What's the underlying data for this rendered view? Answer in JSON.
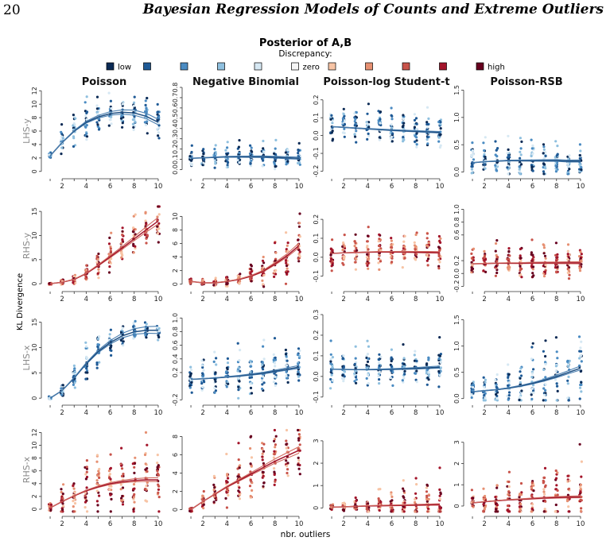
{
  "page": {
    "number": "20",
    "running_title": "Bayesian Regression Models of Counts and Extreme Outliers"
  },
  "figure": {
    "title": "Posterior of A,B",
    "legend_title": "Discrepancy:",
    "legend": [
      {
        "label": "low",
        "color": "#0b2a55"
      },
      {
        "label": "",
        "color": "#1f5a96"
      },
      {
        "label": "",
        "color": "#4a8bc2"
      },
      {
        "label": "",
        "color": "#8fc0df"
      },
      {
        "label": "",
        "color": "#d6e8f3"
      },
      {
        "label": "zero",
        "color": "#f5f5f5"
      },
      {
        "label": "",
        "color": "#f7c4a5"
      },
      {
        "label": "",
        "color": "#e69072"
      },
      {
        "label": "",
        "color": "#c8534a"
      },
      {
        "label": "",
        "color": "#a3142a"
      },
      {
        "label": "high",
        "color": "#67001f"
      }
    ],
    "xlabel": "nbr. outliers",
    "ylabel": "KL Divergence",
    "palette": {
      "blue_points": [
        "#0b2a55",
        "#1f5a96",
        "#4a8bc2",
        "#8fc0df",
        "#d6e8f3"
      ],
      "red_points": [
        "#67001f",
        "#a3142a",
        "#c8534a",
        "#e69072",
        "#f7c4a5"
      ],
      "blue_line": "#1f4f82",
      "red_line": "#a3142a"
    }
  },
  "chart_data": {
    "type": "scatter",
    "columns": [
      "Poisson",
      "Negative Binomial",
      "Poisson-log Student-t",
      "Poisson-RSB"
    ],
    "rows": [
      "LHS-y",
      "RHS-y",
      "LHS-x",
      "RHS-x"
    ],
    "x": [
      1,
      2,
      3,
      4,
      5,
      6,
      7,
      8,
      9,
      10
    ],
    "xlim": [
      0.6,
      10.4
    ],
    "x_ticks": [
      2,
      4,
      6,
      8,
      10
    ],
    "panels": [
      {
        "row": "LHS-y",
        "column": "Poisson",
        "tone": "blue",
        "ylim": [
          -0.5,
          12.5
        ],
        "y_ticks": [
          0,
          2,
          4,
          6,
          8,
          10,
          12
        ],
        "y_tick_labels": [
          "0",
          "2",
          "4",
          "6",
          "8",
          "10",
          "12"
        ],
        "trend": [
          2.3,
          4.3,
          6.0,
          7.3,
          8.1,
          8.6,
          8.8,
          8.7,
          8.2,
          7.3
        ],
        "spread": [
          0.5,
          3.0,
          3.5,
          3.5,
          3.5,
          3.5,
          3.5,
          3.5,
          3.5,
          3.5
        ],
        "max": 12.0
      },
      {
        "row": "LHS-y",
        "column": "Negative Binomial",
        "tone": "blue",
        "ylim": [
          -0.05,
          0.8
        ],
        "y_ticks": [
          0,
          0.1,
          0.2,
          0.3,
          0.4,
          0.5,
          0.6,
          0.7,
          0.8
        ],
        "y_tick_labels": [
          "0.0",
          "0.1",
          "0.2",
          "0.3",
          "0.4",
          "0.5",
          "0.6",
          "0.7",
          "0.8"
        ],
        "trend": [
          0.11,
          0.115,
          0.12,
          0.125,
          0.125,
          0.125,
          0.125,
          0.12,
          0.115,
          0.11
        ],
        "spread": [
          0.13,
          0.14,
          0.15,
          0.15,
          0.15,
          0.15,
          0.15,
          0.15,
          0.15,
          0.15
        ],
        "max": 0.78
      },
      {
        "row": "LHS-y",
        "column": "Poisson-log Student-t",
        "tone": "blue",
        "ylim": [
          -0.22,
          0.27
        ],
        "y_ticks": [
          -0.2,
          -0.1,
          0,
          0.1,
          0.2
        ],
        "y_tick_labels": [
          "-0.2",
          "-0.1",
          "0.0",
          "0.1",
          "0.2"
        ],
        "trend": [
          0.05,
          0.046,
          0.042,
          0.038,
          0.034,
          0.03,
          0.027,
          0.024,
          0.021,
          0.018
        ],
        "spread": [
          0.13,
          0.13,
          0.13,
          0.13,
          0.13,
          0.13,
          0.13,
          0.13,
          0.13,
          0.13
        ],
        "max": 0.25
      },
      {
        "row": "LHS-y",
        "column": "Poisson-RSB",
        "tone": "blue",
        "ylim": [
          -0.05,
          1.55
        ],
        "y_ticks": [
          0,
          0.5,
          1.0,
          1.5
        ],
        "y_tick_labels": [
          "0.0",
          "0.5",
          "1.0",
          "1.5"
        ],
        "trend": [
          0.17,
          0.19,
          0.2,
          0.21,
          0.21,
          0.21,
          0.21,
          0.21,
          0.2,
          0.2
        ],
        "spread": [
          0.35,
          0.4,
          0.45,
          0.45,
          0.45,
          0.45,
          0.45,
          0.45,
          0.45,
          0.45
        ],
        "max": 1.45
      },
      {
        "row": "RHS-y",
        "column": "Poisson",
        "tone": "red",
        "ylim": [
          -0.8,
          16.5
        ],
        "y_ticks": [
          0,
          5,
          10,
          15
        ],
        "y_tick_labels": [
          "0",
          "5",
          "10",
          "15"
        ],
        "trend": [
          0.0,
          0.3,
          0.9,
          2.1,
          3.8,
          5.6,
          7.4,
          9.3,
          11.2,
          13.0
        ],
        "spread": [
          0.3,
          0.8,
          1.5,
          2.5,
          3.5,
          4.5,
          5.5,
          6.0,
          6.0,
          6.0
        ],
        "max": 16.0
      },
      {
        "row": "RHS-y",
        "column": "Negative Binomial",
        "tone": "red",
        "ylim": [
          -0.5,
          11.8
        ],
        "y_ticks": [
          0,
          2,
          4,
          6,
          8,
          10
        ],
        "y_tick_labels": [
          "0",
          "2",
          "4",
          "6",
          "8",
          "10"
        ],
        "trend": [
          0.4,
          0.2,
          0.2,
          0.4,
          0.7,
          1.2,
          1.9,
          3.0,
          4.2,
          5.7
        ],
        "spread": [
          0.6,
          0.6,
          0.8,
          1.0,
          1.5,
          2.5,
          3.5,
          4.5,
          5.0,
          5.5
        ],
        "max": 11.5
      },
      {
        "row": "RHS-y",
        "column": "Poisson-log Student-t",
        "tone": "red",
        "ylim": [
          -0.16,
          0.28
        ],
        "y_ticks": [
          -0.1,
          0,
          0.1,
          0.2
        ],
        "y_tick_labels": [
          "-0.1",
          "0.0",
          "0.1",
          "0.2"
        ],
        "trend": [
          0.02,
          0.023,
          0.025,
          0.027,
          0.028,
          0.028,
          0.028,
          0.027,
          0.026,
          0.025
        ],
        "spread": [
          0.12,
          0.12,
          0.12,
          0.12,
          0.12,
          0.12,
          0.12,
          0.12,
          0.12,
          0.12
        ],
        "max": 0.26
      },
      {
        "row": "RHS-y",
        "column": "Poisson-RSB",
        "tone": "red",
        "ylim": [
          -0.22,
          1.08
        ],
        "y_ticks": [
          -0.2,
          0,
          0.2,
          0.6,
          0.8,
          1.0
        ],
        "y_tick_labels": [
          "-0.2",
          "0.0",
          "0.2",
          "0.6",
          "0.8",
          "1.0"
        ],
        "trend": [
          0.15,
          0.155,
          0.16,
          0.16,
          0.16,
          0.165,
          0.165,
          0.165,
          0.165,
          0.165
        ],
        "spread": [
          0.3,
          0.3,
          0.35,
          0.35,
          0.35,
          0.35,
          0.35,
          0.35,
          0.35,
          0.35
        ],
        "max": 1.05
      },
      {
        "row": "LHS-x",
        "column": "Poisson",
        "tone": "blue",
        "ylim": [
          -0.6,
          16.5
        ],
        "y_ticks": [
          0,
          5,
          10,
          15
        ],
        "y_tick_labels": [
          "0",
          "5",
          "10",
          "15"
        ],
        "trend": [
          0.0,
          1.5,
          4.0,
          6.8,
          9.2,
          11.0,
          12.3,
          13.1,
          13.4,
          13.4
        ],
        "spread": [
          0.3,
          2.0,
          5.0,
          6.0,
          5.0,
          4.0,
          3.0,
          2.5,
          2.5,
          2.5
        ],
        "max": 15.5
      },
      {
        "row": "LHS-x",
        "column": "Negative Binomial",
        "tone": "blue",
        "ylim": [
          -0.22,
          1.05
        ],
        "y_ticks": [
          -0.2,
          0.2,
          0.4,
          0.6,
          0.8,
          1.0
        ],
        "y_tick_labels": [
          "-0.2",
          "0.2",
          "0.4",
          "0.6",
          "0.8",
          "1.0"
        ],
        "trend": [
          0.1,
          0.11,
          0.12,
          0.135,
          0.15,
          0.17,
          0.19,
          0.22,
          0.25,
          0.28
        ],
        "spread": [
          0.3,
          0.35,
          0.4,
          0.4,
          0.45,
          0.45,
          0.45,
          0.45,
          0.45,
          0.45
        ],
        "max": 1.02
      },
      {
        "row": "LHS-x",
        "column": "Poisson-log Student-t",
        "tone": "blue",
        "ylim": [
          -0.12,
          0.3
        ],
        "y_ticks": [
          -0.1,
          0,
          0.1,
          0.2,
          0.3
        ],
        "y_tick_labels": [
          "-0.1",
          "0.0",
          "0.1",
          "0.2",
          "0.3"
        ],
        "trend": [
          0.035,
          0.034,
          0.033,
          0.033,
          0.034,
          0.035,
          0.037,
          0.039,
          0.042,
          0.045
        ],
        "spread": [
          0.13,
          0.13,
          0.13,
          0.13,
          0.13,
          0.13,
          0.13,
          0.13,
          0.13,
          0.13
        ],
        "max": 0.29
      },
      {
        "row": "LHS-x",
        "column": "Poisson-RSB",
        "tone": "blue",
        "ylim": [
          -0.05,
          1.6
        ],
        "y_ticks": [
          0,
          0.5,
          1.0,
          1.5
        ],
        "y_tick_labels": [
          "0.0",
          "0.5",
          "1.0",
          "1.5"
        ],
        "trend": [
          0.13,
          0.15,
          0.17,
          0.2,
          0.24,
          0.29,
          0.35,
          0.42,
          0.5,
          0.58
        ],
        "spread": [
          0.3,
          0.35,
          0.4,
          0.5,
          0.6,
          0.7,
          0.8,
          0.9,
          0.9,
          0.9
        ],
        "max": 1.55
      },
      {
        "row": "RHS-x",
        "column": "Poisson",
        "tone": "red",
        "ylim": [
          -0.5,
          12.8
        ],
        "y_ticks": [
          0,
          2,
          4,
          6,
          8,
          10,
          12
        ],
        "y_tick_labels": [
          "0",
          "2",
          "4",
          "6",
          "8",
          "10",
          "12"
        ],
        "trend": [
          0.2,
          1.2,
          2.1,
          2.9,
          3.5,
          4.0,
          4.3,
          4.5,
          4.6,
          4.6
        ],
        "spread": [
          0.8,
          3.0,
          5.0,
          6.0,
          6.5,
          7.0,
          7.5,
          7.5,
          7.5,
          7.5
        ],
        "max": 12.0
      },
      {
        "row": "RHS-x",
        "column": "Negative Binomial",
        "tone": "red",
        "ylim": [
          -0.3,
          9.0
        ],
        "y_ticks": [
          0,
          2,
          4,
          6,
          8
        ],
        "y_tick_labels": [
          "0",
          "2",
          "4",
          "6",
          "8"
        ],
        "trend": [
          0.0,
          0.9,
          1.7,
          2.5,
          3.2,
          3.9,
          4.6,
          5.3,
          5.9,
          6.5
        ],
        "spread": [
          0.5,
          1.5,
          2.5,
          3.5,
          4.0,
          4.5,
          4.5,
          4.5,
          4.5,
          4.5
        ],
        "max": 8.7
      },
      {
        "row": "RHS-x",
        "column": "Poisson-log Student-t",
        "tone": "red",
        "ylim": [
          -0.2,
          3.6
        ],
        "y_ticks": [
          0,
          1,
          2,
          3
        ],
        "y_tick_labels": [
          "0",
          "1",
          "2",
          "3"
        ],
        "trend": [
          0.03,
          0.05,
          0.07,
          0.09,
          0.1,
          0.11,
          0.12,
          0.13,
          0.14,
          0.15
        ],
        "spread": [
          0.2,
          0.3,
          0.4,
          0.5,
          0.7,
          0.9,
          1.1,
          1.3,
          1.4,
          1.5
        ],
        "max": 3.5
      },
      {
        "row": "RHS-x",
        "column": "Poisson-RSB",
        "tone": "red",
        "ylim": [
          -0.3,
          3.7
        ],
        "y_ticks": [
          0,
          1,
          2,
          3
        ],
        "y_tick_labels": [
          "0",
          "1",
          "2",
          "3"
        ],
        "trend": [
          0.15,
          0.2,
          0.25,
          0.29,
          0.32,
          0.35,
          0.38,
          0.4,
          0.42,
          0.43
        ],
        "spread": [
          0.6,
          0.9,
          1.2,
          1.4,
          1.6,
          1.8,
          2.0,
          2.2,
          2.3,
          2.4
        ],
        "max": 3.6
      }
    ],
    "grid": false,
    "legend_position": "top"
  }
}
